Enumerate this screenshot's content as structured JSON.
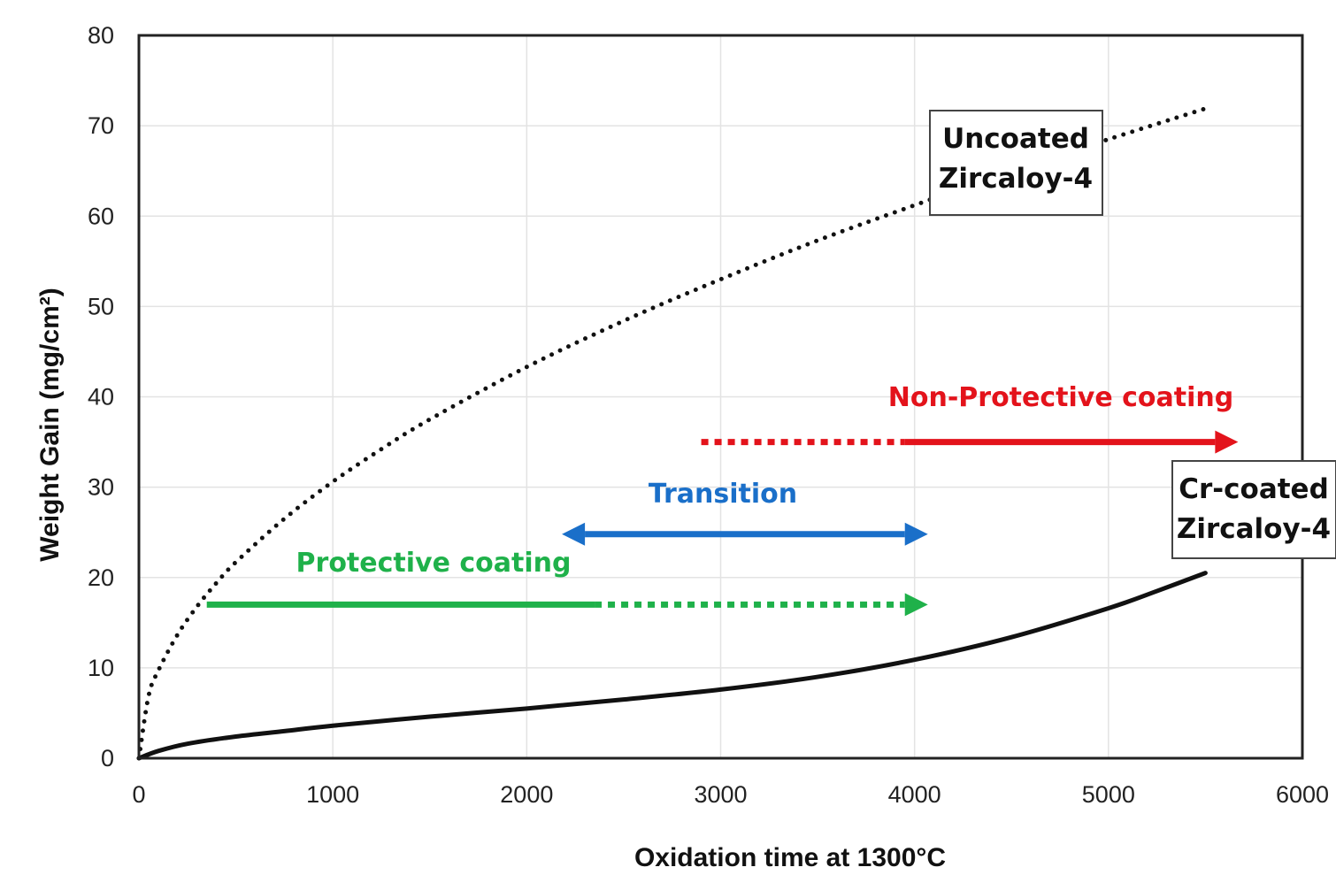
{
  "chart_data": {
    "type": "line",
    "xlabel": "Oxidation time at 1300°C",
    "ylabel": "Weight Gain (mg/cm²)",
    "xlim": [
      0,
      6000
    ],
    "ylim": [
      0,
      80
    ],
    "x_ticks": [
      "0",
      "1000",
      "2000",
      "3000",
      "4000",
      "5000",
      "6000"
    ],
    "y_ticks": [
      "0",
      "10",
      "20",
      "30",
      "40",
      "50",
      "60",
      "70",
      "80"
    ],
    "grid": true,
    "series": [
      {
        "name": "Uncoated Zircaloy-4",
        "style": "dotted",
        "color": "#111111",
        "x": [
          0,
          50,
          100,
          200,
          300,
          400,
          500,
          750,
          1000,
          1250,
          1500,
          2000,
          2500,
          3000,
          3500,
          4000,
          4500,
          5000,
          5500
        ],
        "y": [
          0,
          6.9,
          9.7,
          13.7,
          16.8,
          19.4,
          21.7,
          26.5,
          30.6,
          34.2,
          37.5,
          43.3,
          48.4,
          53.0,
          57.3,
          61.2,
          65.0,
          68.5,
          71.9
        ]
      },
      {
        "name": "Cr-coated Zircaloy-4",
        "style": "solid",
        "color": "#111111",
        "x": [
          0,
          100,
          250,
          500,
          750,
          1000,
          1500,
          2000,
          2500,
          3000,
          3500,
          4000,
          4500,
          5000,
          5250,
          5500
        ],
        "y": [
          0,
          0.8,
          1.6,
          2.4,
          3.0,
          3.6,
          4.6,
          5.5,
          6.5,
          7.6,
          9.0,
          10.9,
          13.4,
          16.6,
          18.5,
          20.5
        ]
      }
    ],
    "annotations": {
      "uncoated_label": [
        "Uncoated",
        "Zircaloy-4"
      ],
      "coated_label": [
        "Cr-coated",
        "Zircaloy-4"
      ],
      "regimes": [
        {
          "label": "Protective coating",
          "color": "#1fb14a",
          "y": 17,
          "solid": [
            350,
            2350
          ],
          "dotted": [
            2350,
            3950
          ],
          "arrow": "right"
        },
        {
          "label": "Transition",
          "color": "#1a6fc9",
          "y": 24.8,
          "solid": [
            2300,
            3950
          ],
          "arrow": "both"
        },
        {
          "label": "Non-Protective coating",
          "color": "#e3131b",
          "y": 35,
          "dotted": [
            2900,
            3950
          ],
          "solid": [
            3950,
            5550
          ],
          "arrow": "right"
        }
      ]
    }
  }
}
